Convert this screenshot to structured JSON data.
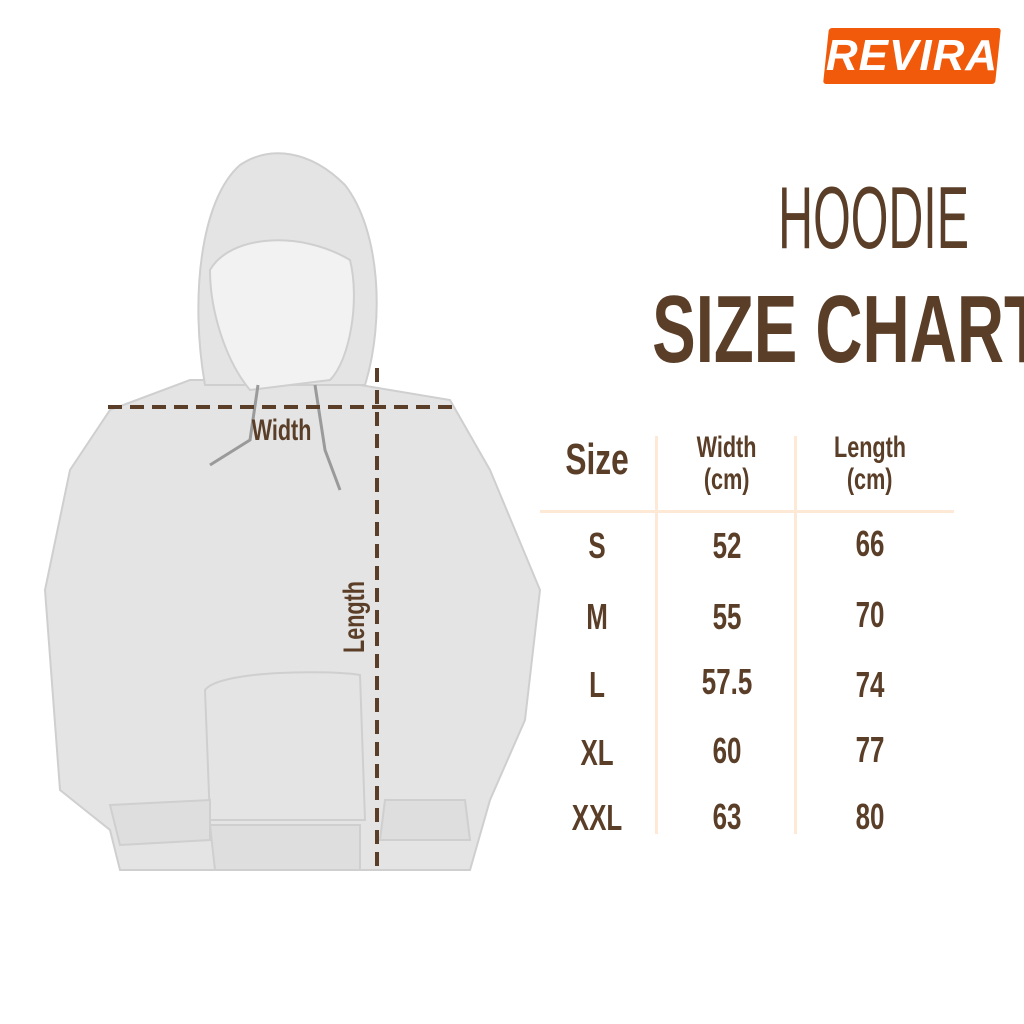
{
  "brand": {
    "logo_text": "REVIRA",
    "color": "#f05a0a"
  },
  "title": {
    "line1": "HOODIE",
    "line2": "SIZE CHART"
  },
  "diagram": {
    "width_label": "Width",
    "length_label": "Length"
  },
  "table": {
    "headers": [
      {
        "line1": "Size",
        "line2": ""
      },
      {
        "line1": "Width",
        "line2": "(cm)"
      },
      {
        "line1": "Length",
        "line2": "(cm)"
      }
    ],
    "rows": [
      [
        "S",
        "52",
        "66"
      ],
      [
        "M",
        "55",
        "70"
      ],
      [
        "L",
        "57.5",
        "74"
      ],
      [
        "XL",
        "60",
        "77"
      ],
      [
        "XXL",
        "63",
        "80"
      ]
    ]
  },
  "colors": {
    "text": "#5a3e28",
    "grid": "#fde9d6",
    "garment": "#e6e6e6"
  }
}
